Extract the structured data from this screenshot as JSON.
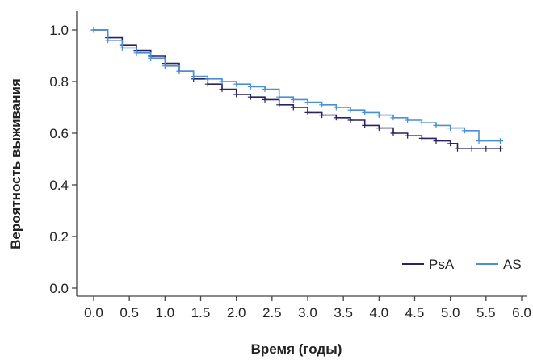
{
  "chart_data": {
    "type": "line",
    "xlabel": "Время (годы)",
    "ylabel": "Вероятность выживания",
    "xlim": [
      0,
      6
    ],
    "ylim": [
      0,
      1.05
    ],
    "x_ticks": [
      "0.0",
      "0.5",
      "1.0",
      "1.5",
      "2.0",
      "2.5",
      "3.0",
      "3.5",
      "4.0",
      "4.5",
      "5.0",
      "5.5",
      "6.0"
    ],
    "y_ticks": [
      "0.0",
      "0.2",
      "0.4",
      "0.6",
      "0.8",
      "1.0"
    ],
    "grid": false,
    "legend_position": "bottom-right",
    "series": [
      {
        "name": "PsA",
        "color": "#2b2260",
        "x": [
          0.0,
          0.2,
          0.4,
          0.6,
          0.8,
          1.0,
          1.2,
          1.4,
          1.6,
          1.8,
          2.0,
          2.2,
          2.4,
          2.6,
          2.8,
          3.0,
          3.2,
          3.4,
          3.6,
          3.8,
          4.0,
          4.2,
          4.4,
          4.6,
          4.8,
          5.0,
          5.1,
          5.3,
          5.5,
          5.7
        ],
        "y": [
          1.0,
          0.97,
          0.94,
          0.92,
          0.9,
          0.87,
          0.84,
          0.81,
          0.79,
          0.77,
          0.75,
          0.74,
          0.73,
          0.71,
          0.7,
          0.68,
          0.67,
          0.66,
          0.65,
          0.63,
          0.62,
          0.6,
          0.59,
          0.58,
          0.57,
          0.56,
          0.54,
          0.54,
          0.54,
          0.54
        ]
      },
      {
        "name": "AS",
        "color": "#4a8fd4",
        "x": [
          0.0,
          0.2,
          0.4,
          0.6,
          0.8,
          1.0,
          1.2,
          1.4,
          1.6,
          1.8,
          2.0,
          2.2,
          2.4,
          2.6,
          2.8,
          3.0,
          3.2,
          3.4,
          3.6,
          3.8,
          4.0,
          4.2,
          4.4,
          4.6,
          4.8,
          5.0,
          5.2,
          5.4,
          5.7
        ],
        "y": [
          1.0,
          0.96,
          0.93,
          0.91,
          0.89,
          0.86,
          0.84,
          0.82,
          0.81,
          0.8,
          0.79,
          0.78,
          0.77,
          0.74,
          0.73,
          0.72,
          0.71,
          0.7,
          0.69,
          0.68,
          0.67,
          0.66,
          0.65,
          0.64,
          0.63,
          0.62,
          0.61,
          0.57,
          0.57
        ]
      }
    ]
  }
}
